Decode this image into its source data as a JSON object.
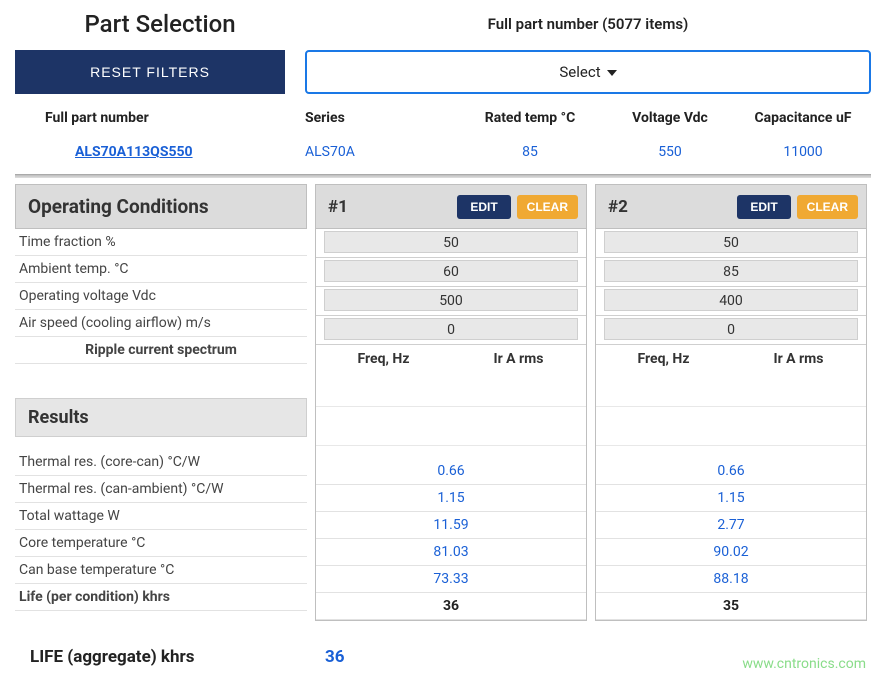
{
  "header": {
    "title": "Part Selection",
    "items_label": "Full part number (5077 items)",
    "reset_label": "RESET FILTERS",
    "select_label": "Select"
  },
  "columns": {
    "part": "Full part number",
    "series": "Series",
    "temp": "Rated temp °C",
    "volt": "Voltage Vdc",
    "cap": "Capacitance uF"
  },
  "row": {
    "part": "ALS70A113QS550",
    "series": "ALS70A",
    "temp": "85",
    "volt": "550",
    "cap": "11000"
  },
  "opcond": {
    "title": "Operating Conditions",
    "labels": {
      "timefrac": "Time fraction %",
      "ambient": "Ambient temp. °C",
      "opv": "Operating voltage Vdc",
      "air": "Air speed (cooling airflow) m/s",
      "ripple": "Ripple current spectrum"
    },
    "ripple_cols": {
      "freq": "Freq, Hz",
      "ir": "Ir A rms"
    }
  },
  "results": {
    "title": "Results",
    "labels": {
      "thcore": "Thermal res. (core-can) °C/W",
      "thcan": "Thermal res. (can-ambient) °C/W",
      "watt": "Total wattage W",
      "coretemp": "Core temperature °C",
      "canbase": "Can base temperature °C",
      "life": "Life (per condition) khrs"
    }
  },
  "conditions": [
    {
      "name": "#1",
      "edit": "EDIT",
      "clear": "CLEAR",
      "timefrac": "50",
      "ambient": "60",
      "opv": "500",
      "air": "0",
      "thcore": "0.66",
      "thcan": "1.15",
      "watt": "11.59",
      "coretemp": "81.03",
      "canbase": "73.33",
      "life": "36"
    },
    {
      "name": "#2",
      "edit": "EDIT",
      "clear": "CLEAR",
      "timefrac": "50",
      "ambient": "85",
      "opv": "400",
      "air": "0",
      "thcore": "0.66",
      "thcan": "1.15",
      "watt": "2.77",
      "coretemp": "90.02",
      "canbase": "88.18",
      "life": "35"
    }
  ],
  "aggregate": {
    "label": "LIFE (aggregate) khrs",
    "value": "36"
  },
  "watermark": "www.cntronics.com",
  "colors": {
    "primary_dark": "#1d3466",
    "accent_orange": "#f0a933",
    "link_blue": "#1a60d6",
    "select_border": "#1a78e6",
    "section_bg": "#dcdcdc",
    "row_border": "#e2e2e2"
  }
}
